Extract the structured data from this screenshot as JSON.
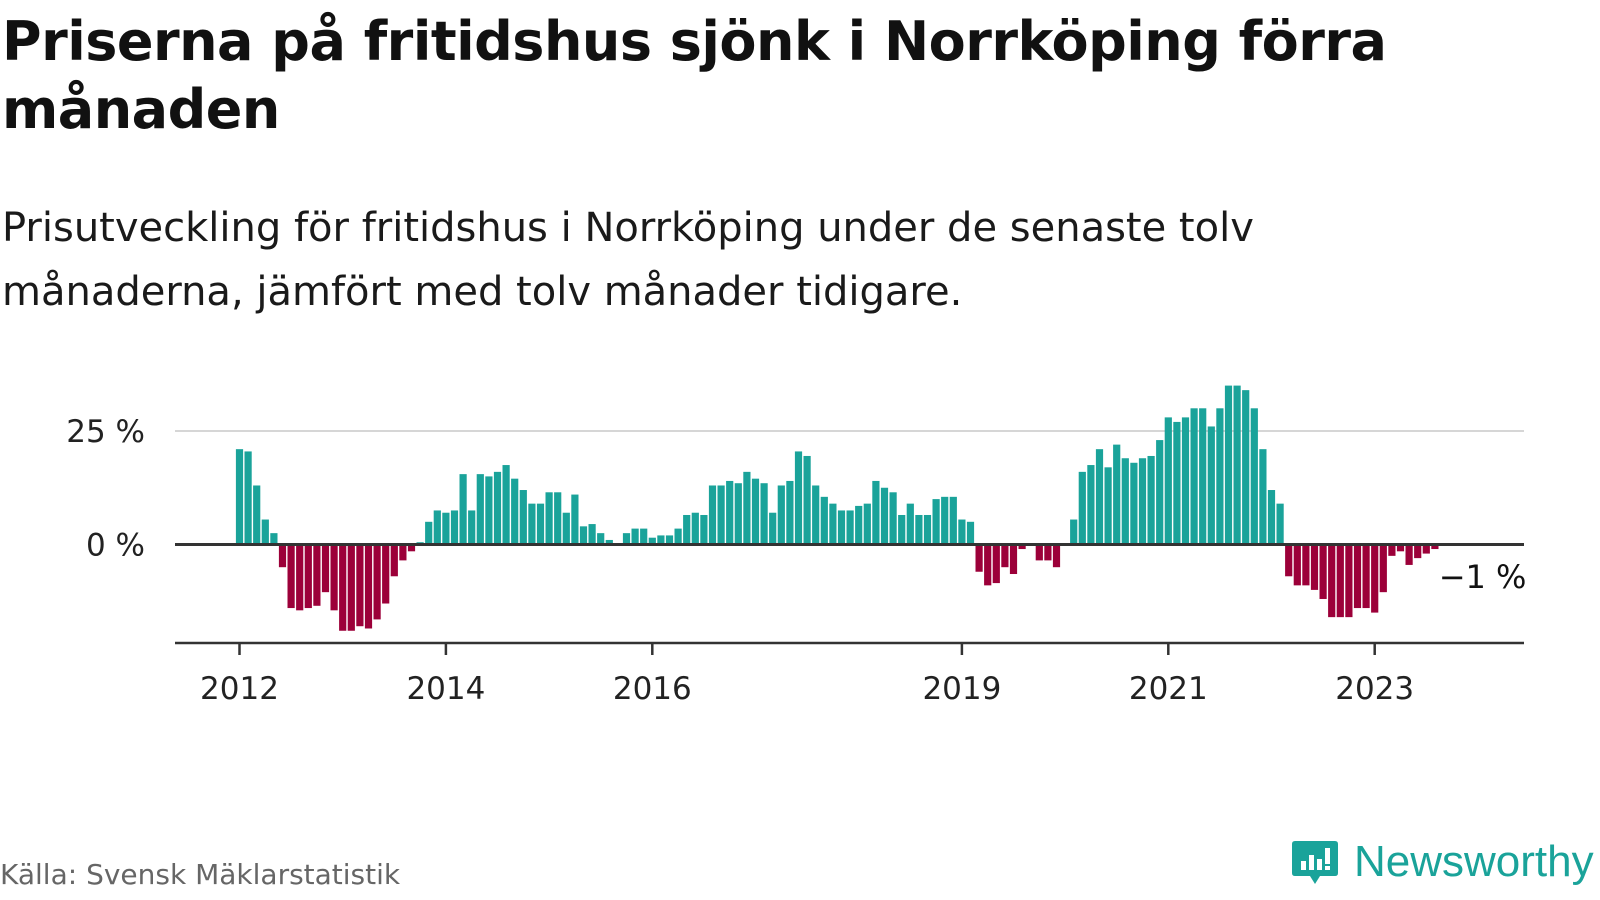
{
  "title": "Priserna på fritidshus sjönk i Norrköping förra månaden",
  "subtitle": "Prisutveckling för fritidshus i Norrköping under de senaste tolv månaderna, jämfört med tolv månader tidigare.",
  "source": "Källa: Svensk Mäklarstatistik",
  "brand": "Newsworthy",
  "colors": {
    "positive": "#1aa39a",
    "negative": "#9c0039",
    "axis": "#333333",
    "grid": "#d6d6d6"
  },
  "chart_data": {
    "type": "bar",
    "title": "Priserna på fritidshus sjönk i Norrköping förra månaden",
    "xlabel": "",
    "ylabel": "",
    "ylim": [
      -21,
      35
    ],
    "grid": true,
    "start": "2012-01",
    "yticks": [
      {
        "value": 0,
        "label": "0 %"
      },
      {
        "value": 25,
        "label": "25 %"
      }
    ],
    "xticks": [
      {
        "index": 0,
        "label": "2012"
      },
      {
        "index": 24,
        "label": "2014"
      },
      {
        "index": 48,
        "label": "2016"
      },
      {
        "index": 84,
        "label": "2019"
      },
      {
        "index": 108,
        "label": "2021"
      },
      {
        "index": 132,
        "label": "2023"
      }
    ],
    "annotation": {
      "index": 142,
      "label": "−1 %"
    },
    "values": [
      21,
      20.5,
      13,
      5.5,
      2.5,
      -5,
      -14,
      -14.5,
      -14,
      -13.5,
      -10.5,
      -14.5,
      -19,
      -19,
      -18,
      -18.5,
      -16.5,
      -13,
      -7,
      -3.5,
      -1.5,
      0.5,
      5,
      7.5,
      7,
      7.5,
      15.5,
      7.5,
      15.5,
      15,
      16,
      17.5,
      14.5,
      12,
      9,
      9,
      11.5,
      11.5,
      7,
      11,
      4,
      4.5,
      2.5,
      1,
      0,
      2.5,
      3.5,
      3.5,
      1.5,
      2,
      2,
      3.5,
      6.5,
      7,
      6.5,
      13,
      13,
      14,
      13.5,
      16,
      14.5,
      13.5,
      7,
      13,
      14,
      20.5,
      19.5,
      13,
      10.5,
      9,
      7.5,
      7.5,
      8.5,
      9,
      14,
      12.5,
      11.5,
      6.5,
      9,
      6.5,
      6.5,
      10,
      10.5,
      10.5,
      5.5,
      5,
      -6,
      -9,
      -8.5,
      -5,
      -6.5,
      -1,
      0,
      -3.5,
      -3.5,
      -5,
      0,
      5.5,
      16,
      17.5,
      21,
      17,
      22,
      19,
      18,
      19,
      19.5,
      23,
      28,
      27,
      28,
      30,
      30,
      26,
      30,
      35,
      35,
      34,
      30,
      21,
      12,
      9,
      -7,
      -9,
      -9,
      -10,
      -12,
      -16,
      -16,
      -16,
      -14,
      -14,
      -15,
      -10.5,
      -2.5,
      -1.5,
      -4.5,
      -3,
      -2,
      -1
    ]
  }
}
